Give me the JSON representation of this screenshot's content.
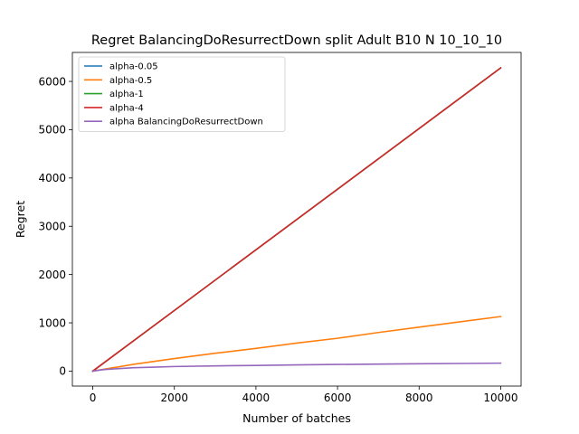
{
  "chart_data": {
    "type": "line",
    "title": "Regret BalancingDoResurrectDown split Adult B10 N 10_10_10",
    "xlabel": "Number of batches",
    "ylabel": "Regret",
    "xlim": [
      -500,
      10500
    ],
    "ylim": [
      -310,
      6600
    ],
    "xticks": [
      0,
      2000,
      4000,
      6000,
      8000,
      10000
    ],
    "yticks": [
      0,
      1000,
      2000,
      3000,
      4000,
      5000,
      6000
    ],
    "grid": false,
    "legend_position": "top-left",
    "series": [
      {
        "name": "alpha-0.05",
        "color": "#1f77b4",
        "x": [
          0,
          10000
        ],
        "y": [
          0,
          6280
        ]
      },
      {
        "name": "alpha-0.5",
        "color": "#ff7f0e",
        "x": [
          0,
          500,
          1000,
          2000,
          3000,
          4000,
          5000,
          6000,
          7000,
          8000,
          9000,
          10000
        ],
        "y": [
          0,
          70,
          140,
          260,
          370,
          470,
          580,
          680,
          800,
          910,
          1020,
          1130
        ]
      },
      {
        "name": "alpha-1",
        "color": "#2ca02c",
        "x": [
          0,
          10000
        ],
        "y": [
          0,
          6280
        ]
      },
      {
        "name": "alpha-4",
        "color": "#d62728",
        "x": [
          0,
          10000
        ],
        "y": [
          0,
          6280
        ]
      },
      {
        "name": "alpha BalancingDoResurrectDown",
        "color": "#9467bd",
        "x": [
          0,
          250,
          500,
          1000,
          1500,
          2000,
          3000,
          4000,
          5000,
          6000,
          7000,
          8000,
          9000,
          10000
        ],
        "y": [
          0,
          30,
          45,
          70,
          82,
          95,
          108,
          118,
          128,
          138,
          145,
          152,
          158,
          165
        ]
      }
    ]
  }
}
